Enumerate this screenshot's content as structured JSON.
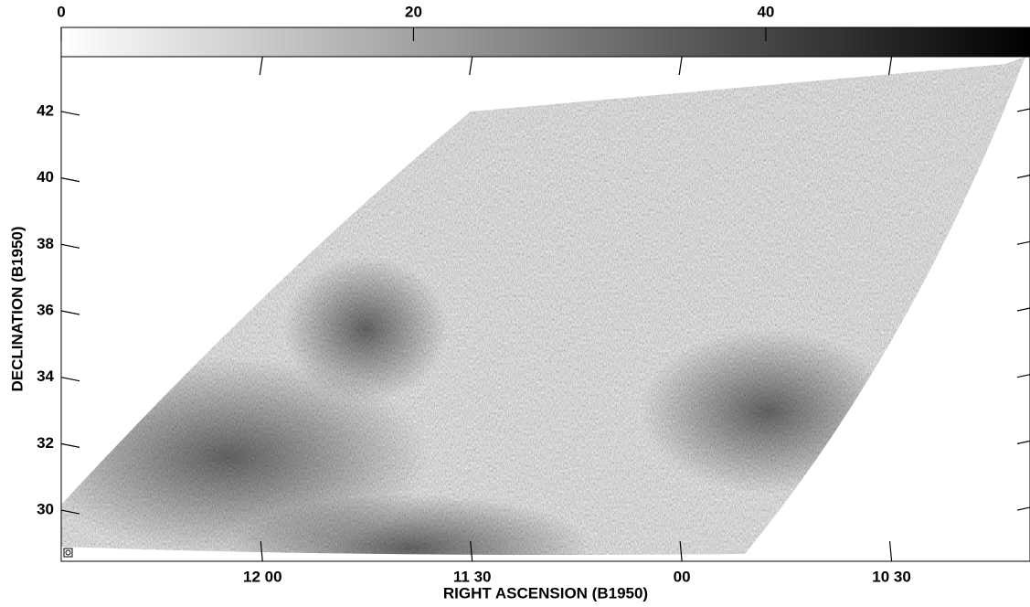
{
  "chart_data": {
    "type": "image",
    "xlabel": "RIGHT ASCENSION (B1950)",
    "ylabel": "DECLINATION (B1950)",
    "xlim": [
      12.48,
      10.17
    ],
    "xticks": [
      {
        "value": 12.0,
        "label": "12 00"
      },
      {
        "value": 11.5,
        "label": "11 30"
      },
      {
        "value": 11.0,
        "label": "00"
      },
      {
        "value": 10.5,
        "label": "10 30"
      }
    ],
    "ylim": [
      28.46,
      43.65
    ],
    "yticks": [
      30,
      32,
      34,
      36,
      38,
      40,
      42
    ],
    "colorbar": {
      "lim": [
        0,
        55
      ],
      "ticks": [
        0,
        20,
        40
      ],
      "colors": [
        "#ffffff",
        "#000000"
      ]
    }
  }
}
